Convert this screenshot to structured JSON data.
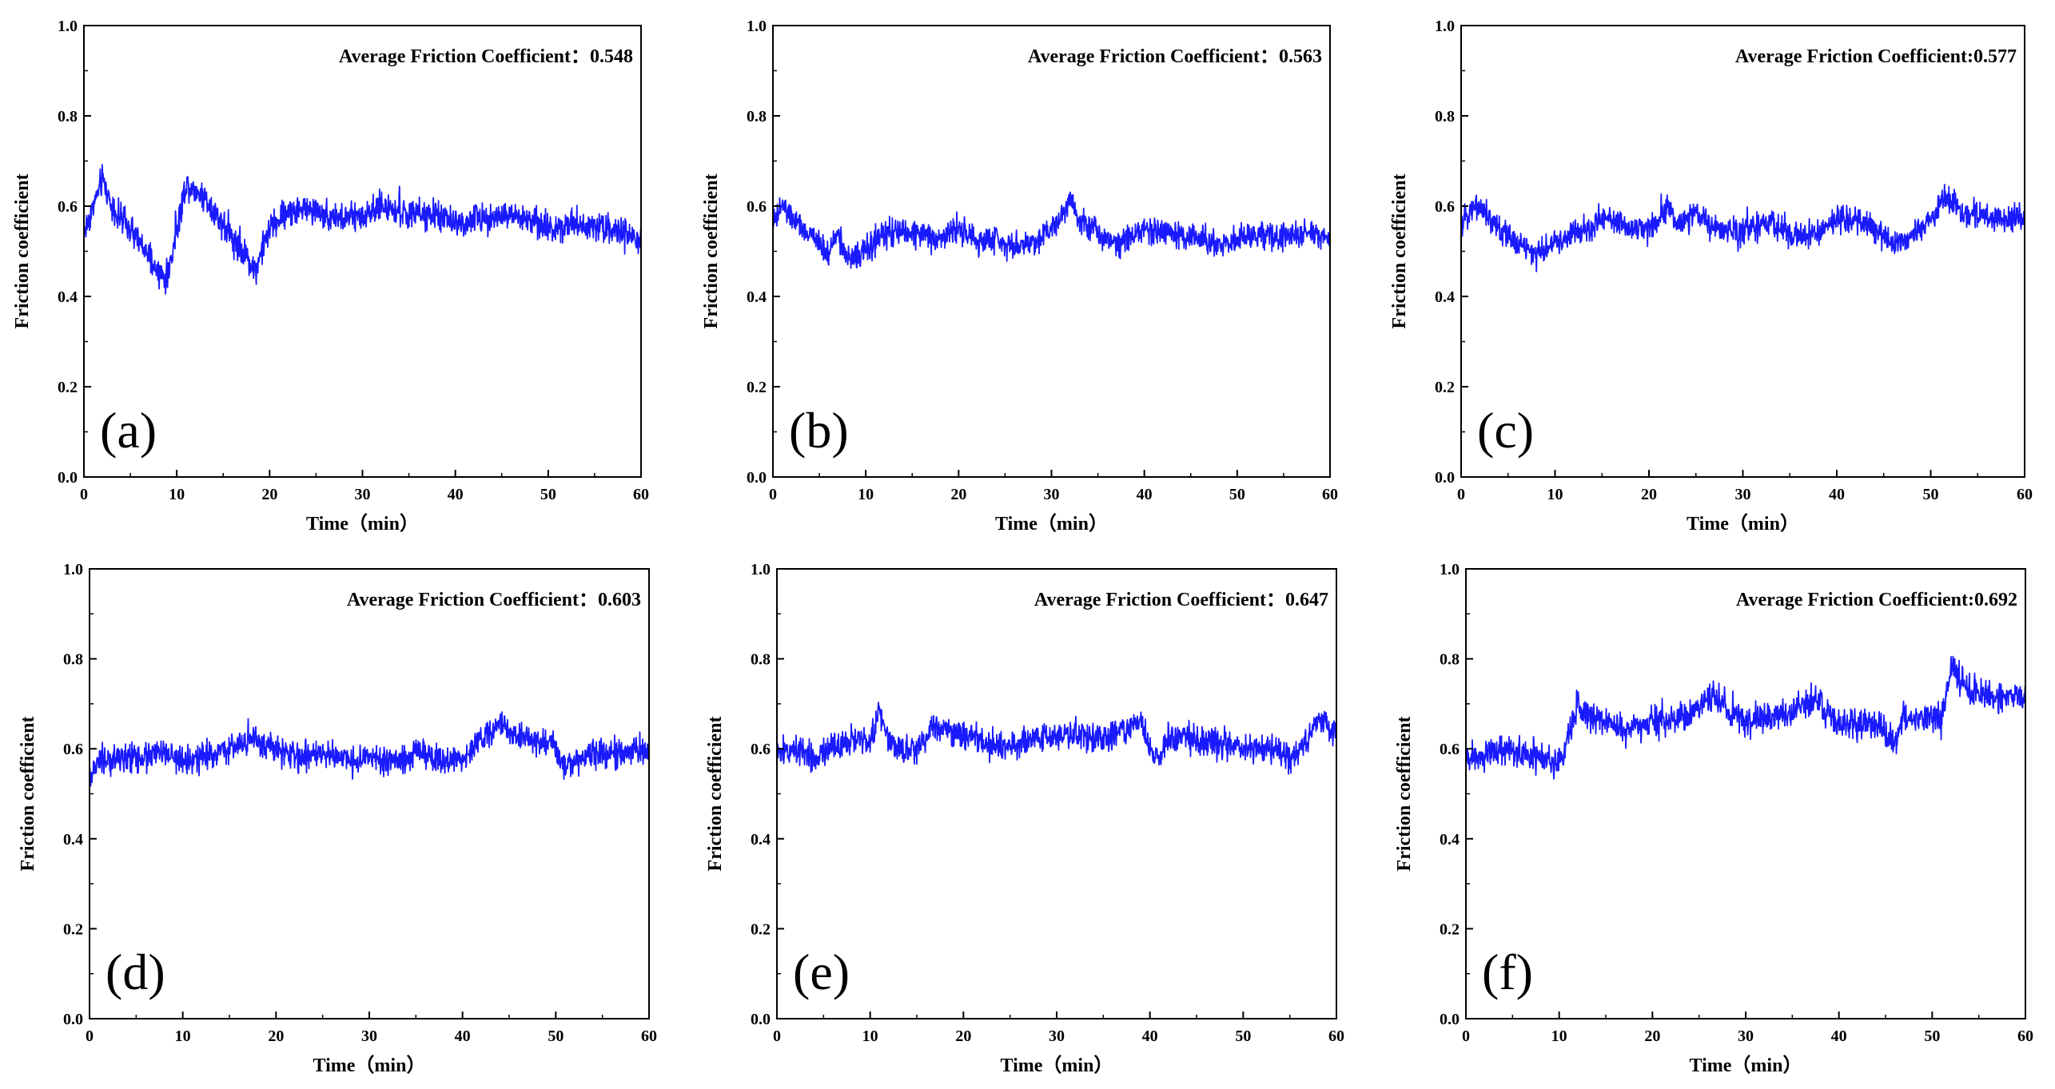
{
  "colors": {
    "line": "#1a1aff",
    "axis": "#000000",
    "background": "#ffffff"
  },
  "chart_data": [
    {
      "type": "line",
      "panel_label": "(a)",
      "annotation": "Average Friction Coefficient：0.548",
      "xlabel": "Time（min）",
      "ylabel": "Friction coefficient",
      "xlim": [
        0,
        60
      ],
      "ylim": [
        0.0,
        1.0
      ],
      "xticks": [
        "0",
        "10",
        "20",
        "30",
        "40",
        "50",
        "60"
      ],
      "yticks": [
        "0.0",
        "0.2",
        "0.4",
        "0.6",
        "0.8",
        "1.0"
      ],
      "x": [
        0,
        1,
        2,
        3,
        4,
        6,
        8,
        9,
        10,
        11,
        13,
        15,
        17,
        18.5,
        20,
        22,
        25,
        28,
        30,
        32,
        35,
        38,
        40,
        42,
        45,
        48,
        50,
        52,
        55,
        58,
        60
      ],
      "y": [
        0.54,
        0.6,
        0.66,
        0.6,
        0.57,
        0.52,
        0.45,
        0.44,
        0.55,
        0.65,
        0.62,
        0.56,
        0.5,
        0.46,
        0.55,
        0.59,
        0.59,
        0.57,
        0.58,
        0.6,
        0.58,
        0.58,
        0.56,
        0.57,
        0.58,
        0.57,
        0.55,
        0.56,
        0.56,
        0.54,
        0.52
      ],
      "noise": 0.025
    },
    {
      "type": "line",
      "panel_label": "(b)",
      "annotation": "Average Friction Coefficient：0.563",
      "xlabel": "Time（min）",
      "ylabel": "Friction coefficient",
      "xlim": [
        0,
        60
      ],
      "ylim": [
        0.0,
        1.0
      ],
      "xticks": [
        "0",
        "10",
        "20",
        "30",
        "40",
        "50",
        "60"
      ],
      "yticks": [
        "0.0",
        "0.2",
        "0.4",
        "0.6",
        "0.8",
        "1.0"
      ],
      "x": [
        0,
        1,
        3,
        5,
        6,
        7,
        8,
        10,
        12,
        15,
        18,
        20,
        22,
        24,
        26,
        28,
        30,
        31,
        32,
        33,
        35,
        37,
        40,
        43,
        45,
        48,
        50,
        52,
        55,
        58,
        60
      ],
      "y": [
        0.56,
        0.6,
        0.55,
        0.52,
        0.49,
        0.55,
        0.48,
        0.5,
        0.54,
        0.54,
        0.53,
        0.55,
        0.52,
        0.53,
        0.51,
        0.52,
        0.55,
        0.58,
        0.62,
        0.57,
        0.54,
        0.52,
        0.55,
        0.54,
        0.53,
        0.52,
        0.52,
        0.54,
        0.53,
        0.54,
        0.53
      ],
      "noise": 0.022
    },
    {
      "type": "line",
      "panel_label": "(c)",
      "annotation": "Average Friction Coefficient:0.577",
      "xlabel": "Time（min）",
      "ylabel": "Friction coefficient",
      "xlim": [
        0,
        60
      ],
      "ylim": [
        0.0,
        1.0
      ],
      "xticks": [
        "0",
        "10",
        "20",
        "30",
        "40",
        "50",
        "60"
      ],
      "yticks": [
        "0.0",
        "0.2",
        "0.4",
        "0.6",
        "0.8",
        "1.0"
      ],
      "x": [
        0,
        1,
        2,
        4,
        6,
        8,
        10,
        12,
        14,
        15,
        18,
        20,
        22,
        23,
        25,
        28,
        30,
        33,
        36,
        38,
        40,
        42,
        44,
        46,
        48,
        50,
        51.5,
        53,
        55,
        58,
        60
      ],
      "y": [
        0.55,
        0.6,
        0.6,
        0.55,
        0.52,
        0.49,
        0.52,
        0.54,
        0.55,
        0.58,
        0.55,
        0.55,
        0.6,
        0.56,
        0.58,
        0.54,
        0.55,
        0.56,
        0.53,
        0.54,
        0.57,
        0.57,
        0.55,
        0.52,
        0.53,
        0.57,
        0.62,
        0.59,
        0.58,
        0.57,
        0.57
      ],
      "noise": 0.022
    },
    {
      "type": "line",
      "panel_label": "(d)",
      "annotation": "Average Friction Coefficient：0.603",
      "xlabel": "Time（min）",
      "ylabel": "Friction coefficient",
      "xlim": [
        0,
        60
      ],
      "ylim": [
        0.0,
        1.0
      ],
      "xticks": [
        "0",
        "10",
        "20",
        "30",
        "40",
        "50",
        "60"
      ],
      "yticks": [
        "0.0",
        "0.2",
        "0.4",
        "0.6",
        "0.8",
        "1.0"
      ],
      "x": [
        0,
        1,
        3,
        5,
        8,
        10,
        12,
        15,
        17,
        19,
        21,
        23,
        25,
        28,
        30,
        33,
        35,
        38,
        40,
        42,
        44,
        46,
        48,
        50,
        51,
        53,
        55,
        57,
        60
      ],
      "y": [
        0.53,
        0.57,
        0.58,
        0.58,
        0.59,
        0.57,
        0.58,
        0.6,
        0.62,
        0.61,
        0.59,
        0.58,
        0.59,
        0.57,
        0.58,
        0.57,
        0.59,
        0.57,
        0.58,
        0.62,
        0.65,
        0.63,
        0.62,
        0.6,
        0.56,
        0.58,
        0.59,
        0.59,
        0.6
      ],
      "noise": 0.024
    },
    {
      "type": "line",
      "panel_label": "(e)",
      "annotation": "Average Friction Coefficient：0.647",
      "xlabel": "Time（min）",
      "ylabel": "Friction coefficient",
      "xlim": [
        0,
        60
      ],
      "ylim": [
        0.0,
        1.0
      ],
      "xticks": [
        "0",
        "10",
        "20",
        "30",
        "40",
        "50",
        "60"
      ],
      "yticks": [
        "0.0",
        "0.2",
        "0.4",
        "0.6",
        "0.8",
        "1.0"
      ],
      "x": [
        0,
        2,
        4,
        6,
        8,
        10,
        11,
        12,
        13,
        15,
        17,
        18,
        20,
        23,
        25,
        27,
        30,
        33,
        35,
        38,
        39,
        40,
        41,
        42,
        45,
        48,
        50,
        53,
        55,
        57,
        58,
        60
      ],
      "y": [
        0.59,
        0.6,
        0.58,
        0.61,
        0.62,
        0.62,
        0.68,
        0.62,
        0.6,
        0.6,
        0.65,
        0.64,
        0.63,
        0.61,
        0.6,
        0.62,
        0.63,
        0.63,
        0.62,
        0.65,
        0.67,
        0.6,
        0.57,
        0.63,
        0.62,
        0.61,
        0.6,
        0.6,
        0.58,
        0.62,
        0.67,
        0.64
      ],
      "noise": 0.024
    },
    {
      "type": "line",
      "panel_label": "(f)",
      "annotation": "Average Friction Coefficient:0.692",
      "xlabel": "Time（min）",
      "ylabel": "Friction coefficient",
      "xlim": [
        0,
        60
      ],
      "ylim": [
        0.0,
        1.0
      ],
      "xticks": [
        "0",
        "10",
        "20",
        "30",
        "40",
        "50",
        "60"
      ],
      "yticks": [
        "0.0",
        "0.2",
        "0.4",
        "0.6",
        "0.8",
        "1.0"
      ],
      "x": [
        0,
        2,
        4,
        6,
        8,
        10,
        11,
        12,
        13,
        15,
        17,
        20,
        23,
        25,
        26.5,
        28,
        30,
        33,
        35,
        37.5,
        39,
        41,
        43,
        45,
        46,
        47,
        49,
        51,
        52,
        54,
        56,
        58,
        60
      ],
      "y": [
        0.58,
        0.59,
        0.6,
        0.59,
        0.58,
        0.56,
        0.62,
        0.7,
        0.68,
        0.66,
        0.64,
        0.66,
        0.67,
        0.69,
        0.72,
        0.69,
        0.66,
        0.67,
        0.68,
        0.71,
        0.67,
        0.65,
        0.66,
        0.64,
        0.61,
        0.67,
        0.67,
        0.66,
        0.78,
        0.73,
        0.72,
        0.72,
        0.71
      ],
      "noise": 0.026
    }
  ]
}
